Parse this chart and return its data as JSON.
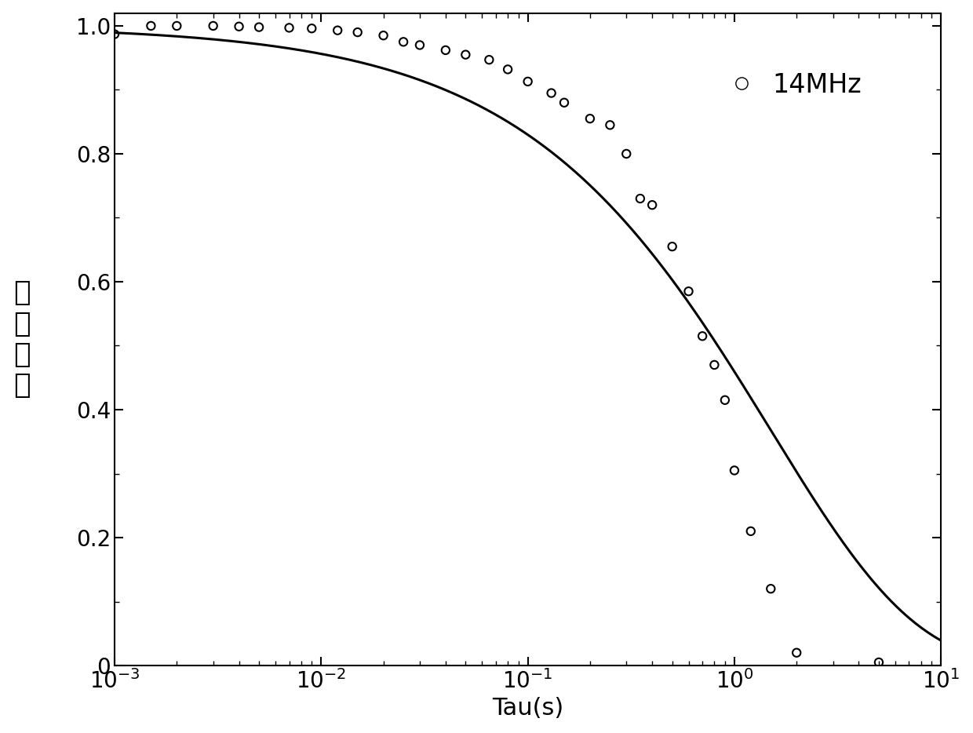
{
  "xlabel": "Tau(s)",
  "ylabel_chars": [
    "磁",
    "化",
    "强",
    "度"
  ],
  "xlim": [
    0.001,
    10
  ],
  "ylim": [
    0,
    1.02
  ],
  "yticks": [
    0,
    0.2,
    0.4,
    0.6,
    0.8,
    1.0
  ],
  "legend_label": "14MHz",
  "curve_color": "#000000",
  "scatter_color": "#000000",
  "background_color": "#ffffff",
  "T2": 1.5,
  "beta": 0.62,
  "scatter_points": [
    [
      0.001,
      0.987
    ],
    [
      0.0015,
      1.0
    ],
    [
      0.002,
      1.0
    ],
    [
      0.003,
      1.0
    ],
    [
      0.004,
      0.999
    ],
    [
      0.005,
      0.998
    ],
    [
      0.007,
      0.997
    ],
    [
      0.009,
      0.996
    ],
    [
      0.012,
      0.993
    ],
    [
      0.015,
      0.99
    ],
    [
      0.02,
      0.985
    ],
    [
      0.025,
      0.975
    ],
    [
      0.03,
      0.97
    ],
    [
      0.04,
      0.962
    ],
    [
      0.05,
      0.955
    ],
    [
      0.065,
      0.947
    ],
    [
      0.08,
      0.932
    ],
    [
      0.1,
      0.913
    ],
    [
      0.13,
      0.895
    ],
    [
      0.15,
      0.88
    ],
    [
      0.2,
      0.855
    ],
    [
      0.25,
      0.845
    ],
    [
      0.3,
      0.8
    ],
    [
      0.35,
      0.73
    ],
    [
      0.4,
      0.72
    ],
    [
      0.5,
      0.655
    ],
    [
      0.6,
      0.585
    ],
    [
      0.7,
      0.515
    ],
    [
      0.8,
      0.47
    ],
    [
      0.9,
      0.415
    ],
    [
      1.0,
      0.305
    ],
    [
      1.2,
      0.21
    ],
    [
      1.5,
      0.12
    ],
    [
      2.0,
      0.02
    ],
    [
      5.0,
      0.005
    ]
  ],
  "line_width": 2.2,
  "scatter_size": 55,
  "scatter_linewidth": 1.5
}
